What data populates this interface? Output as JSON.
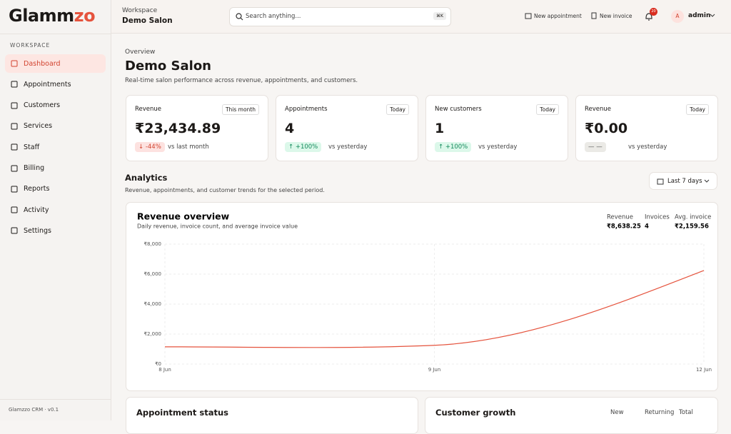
{
  "brand": {
    "first": "Glamm",
    "accent": "zo"
  },
  "sidebar": {
    "section": "WORKSPACE",
    "items": [
      "Dashboard",
      "Appointments",
      "Customers",
      "Services",
      "Staff",
      "Billing",
      "Reports",
      "Activity",
      "Settings"
    ],
    "footer": "Glamzzo CRM · v0.1"
  },
  "header": {
    "workspace_label": "Workspace",
    "workspace": "Demo Salon",
    "search": "Search anything...",
    "shortcut": "⌘K",
    "actions": [
      "New appointment",
      "New invoice"
    ],
    "badge": "20",
    "user_initial": "A",
    "user": "admin"
  },
  "overview": {
    "eyebrow": "Overview",
    "title": "Demo Salon",
    "subtitle": "Real-time salon performance across revenue, appointments, and customers."
  },
  "kpis": [
    {
      "label": "Revenue",
      "period": "This month",
      "value": "₹23,434.89",
      "delta": "↓ -44%",
      "compare": "vs last month"
    },
    {
      "label": "Appointments",
      "period": "Today",
      "value": "4",
      "delta": "↑ +100%",
      "compare": "vs yesterday"
    },
    {
      "label": "New customers",
      "period": "Today",
      "value": "1",
      "delta": "↑ +100%",
      "compare": "vs yesterday"
    },
    {
      "label": "Revenue",
      "period": "Today",
      "value": "₹0.00",
      "delta": "— —",
      "compare": "vs yesterday"
    }
  ],
  "analytics": {
    "title": "Analytics",
    "subtitle": "Revenue, appointments, and customer trends for the selected period.",
    "range": "Last 7 days"
  },
  "chart_data": {
    "type": "line",
    "title": "Revenue overview",
    "subtitle": "Daily revenue, invoice count, and average invoice value",
    "summary": [
      {
        "label": "Revenue",
        "value": "₹8,638.25"
      },
      {
        "label": "Invoices",
        "value": "4"
      },
      {
        "label": "Avg. invoice",
        "value": "₹2,159.56"
      }
    ],
    "x": [
      "8 Jun",
      "9 Jun",
      "12 Jun"
    ],
    "values": [
      1150,
      1250,
      6240
    ],
    "color": "#e5533d",
    "ylim": [
      0,
      8000
    ],
    "yticks": [
      {
        "value": 0,
        "label": "₹0"
      },
      {
        "value": 2000,
        "label": "₹2,000"
      },
      {
        "value": 4000,
        "label": "₹4,000"
      },
      {
        "value": 6000,
        "label": "₹6,000"
      },
      {
        "value": 8000,
        "label": "₹8,000"
      }
    ],
    "grid": true
  },
  "bottom": {
    "status_title": "Appointment status",
    "growth_title": "Customer growth",
    "growth_cols": [
      "New",
      "Returning",
      "Total"
    ]
  }
}
